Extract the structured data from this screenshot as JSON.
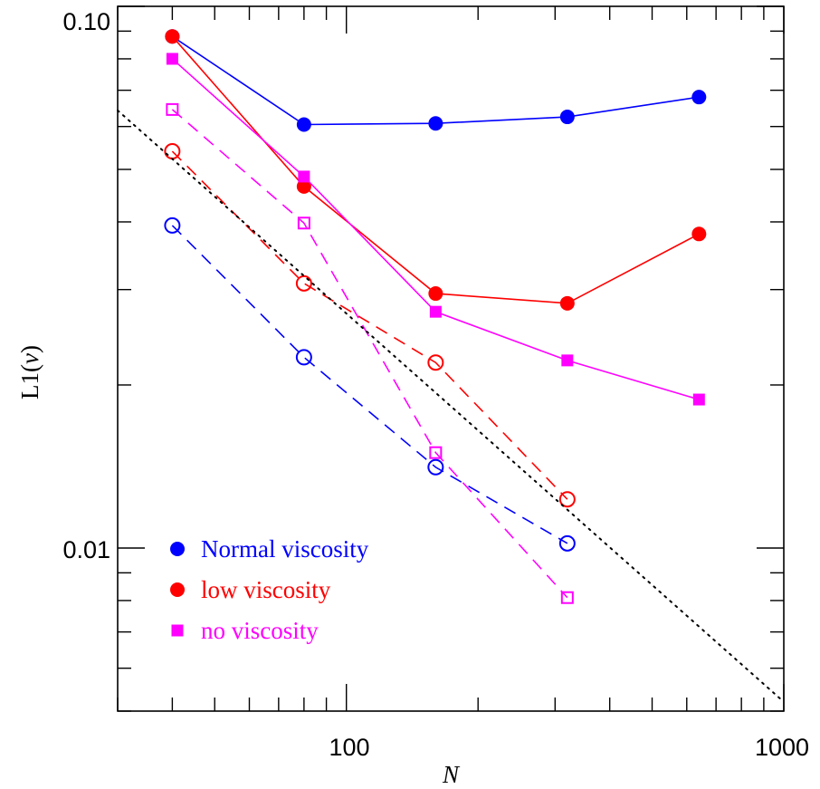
{
  "chart_data": {
    "type": "line",
    "xlabel": "N",
    "ylabel_prefix": "L1(",
    "ylabel_var": "v",
    "ylabel_suffix": ")",
    "xscale": "log",
    "yscale": "log",
    "xlim": [
      30,
      1000
    ],
    "ylim": [
      0.005,
      0.1
    ],
    "x_tick_labels": [
      "100",
      "1000"
    ],
    "y_tick_labels": [
      "0.01",
      "0.10"
    ],
    "grid": false,
    "legend_position": "bottom-left",
    "series": [
      {
        "name": "Normal viscosity",
        "color": "#0000ff",
        "line": "solid",
        "marker": "circle-filled",
        "x": [
          40,
          80,
          160,
          320,
          640
        ],
        "y": [
          0.088,
          0.0605,
          0.0608,
          0.0625,
          0.068
        ]
      },
      {
        "name": "low viscosity",
        "color": "#ff0000",
        "line": "solid",
        "marker": "circle-filled",
        "x": [
          40,
          80,
          160,
          320,
          640
        ],
        "y": [
          0.088,
          0.0465,
          0.0295,
          0.0283,
          0.038
        ]
      },
      {
        "name": "no viscosity",
        "color": "#ff00ff",
        "line": "solid",
        "marker": "square-filled",
        "x": [
          40,
          80,
          160,
          320,
          640
        ],
        "y": [
          0.08,
          0.0485,
          0.0273,
          0.0222,
          0.0188
        ]
      },
      {
        "color": "#0000ff",
        "line": "dashed",
        "marker": "circle-open",
        "x": [
          40,
          80,
          160,
          320
        ],
        "y": [
          0.0394,
          0.0225,
          0.0141,
          0.0102
        ]
      },
      {
        "color": "#ff0000",
        "line": "dashed",
        "marker": "circle-open",
        "x": [
          40,
          80,
          160,
          320
        ],
        "y": [
          0.054,
          0.0308,
          0.022,
          0.0123
        ]
      },
      {
        "color": "#ff00ff",
        "line": "dashed",
        "marker": "square-open",
        "x": [
          40,
          80,
          160,
          320
        ],
        "y": [
          0.0645,
          0.0398,
          0.015,
          0.0081
        ]
      },
      {
        "color": "#000000",
        "line": "dotted",
        "marker": "none",
        "x": [
          30,
          1000
        ],
        "y": [
          0.06425,
          0.0052
        ]
      }
    ]
  }
}
